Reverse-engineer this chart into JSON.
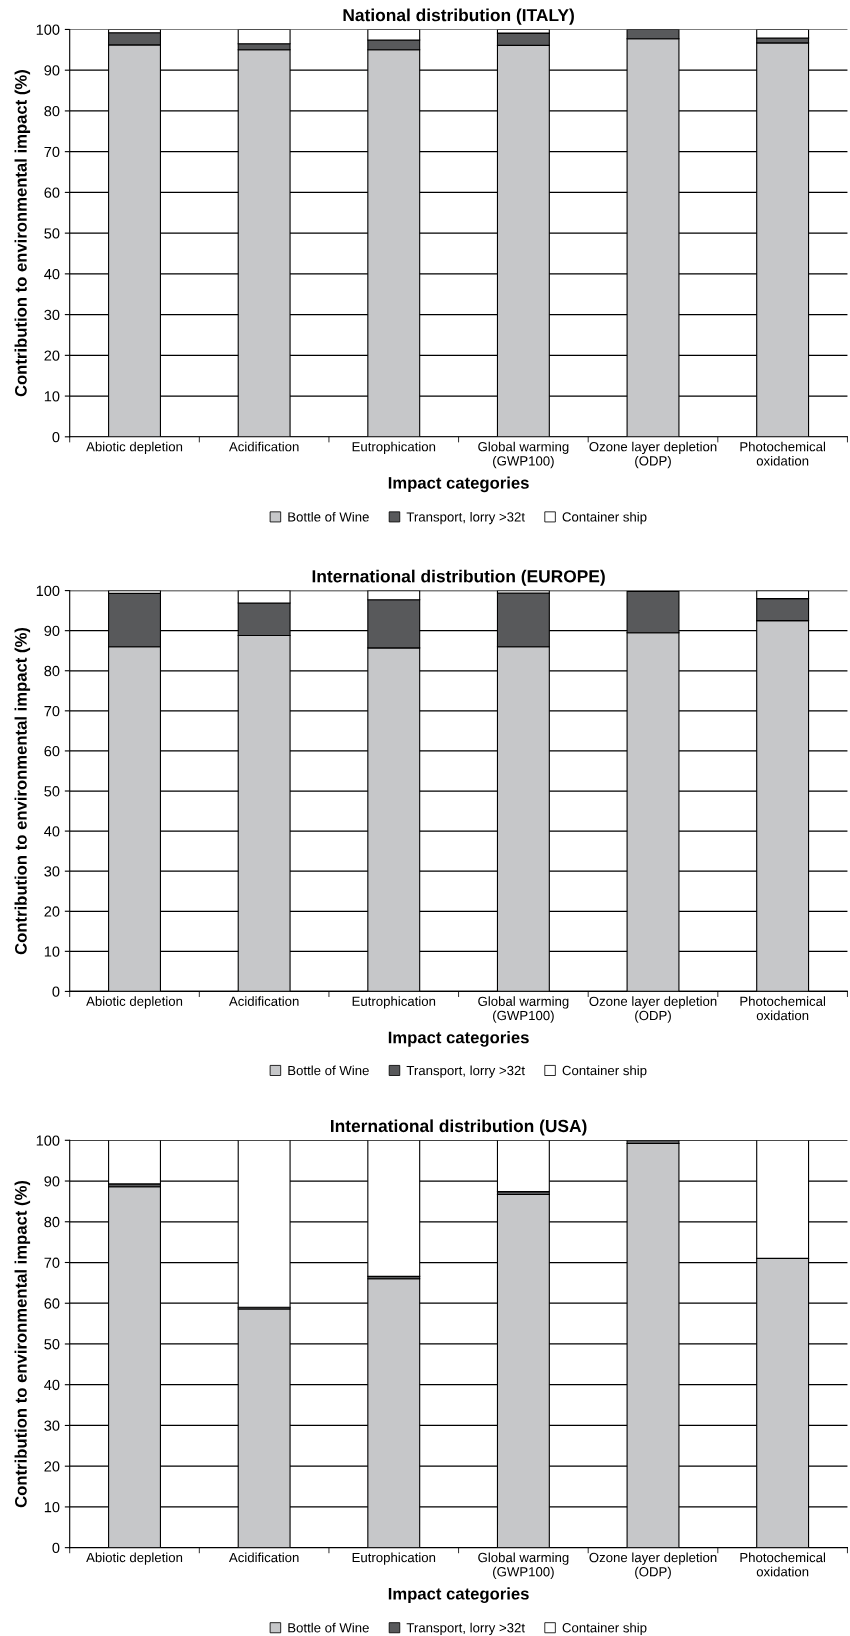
{
  "chart_data": [
    {
      "type": "bar",
      "title": "National distribution (ITALY)",
      "xlabel": "Impact categories",
      "ylabel": "Contribution to environmental impact (%)",
      "stacked": true,
      "legend": "bottom",
      "grid": "y",
      "categories": [
        "Abiotic depletion",
        "Acidification",
        "Eutrophication",
        "Global warming\n(GWP100)",
        "Ozone layer depletion\n(ODP)",
        "Photochemical\noxidation"
      ],
      "ylim": [
        0,
        100
      ],
      "yticks": [
        0,
        10,
        20,
        30,
        40,
        50,
        60,
        70,
        80,
        90,
        100
      ],
      "series": [
        {
          "name": "Bottle of Wine",
          "color": "#c6c7c9",
          "values": [
            96.2,
            95.0,
            95.0,
            96.1,
            97.7,
            96.7
          ]
        },
        {
          "name": "Transport, lorry >32t",
          "color": "#58595b",
          "values": [
            3.0,
            1.5,
            2.4,
            3.0,
            2.3,
            1.2
          ]
        },
        {
          "name": "Container ship",
          "color": "#ffffff",
          "values": [
            0.8,
            3.5,
            2.6,
            0.9,
            null,
            2.1
          ]
        }
      ]
    },
    {
      "type": "bar",
      "title": "International distribution (EUROPE)",
      "xlabel": "Impact categories",
      "ylabel": "Contribution to environmental impact (%)",
      "stacked": true,
      "legend": "bottom",
      "grid": "y",
      "categories": [
        "Abiotic depletion",
        "Acidification",
        "Eutrophication",
        "Global warming\n(GWP100)",
        "Ozone layer depletion\n(ODP)",
        "Photochemical\noxidation"
      ],
      "ylim": [
        0,
        100
      ],
      "yticks": [
        0,
        10,
        20,
        30,
        40,
        50,
        60,
        70,
        80,
        90,
        100
      ],
      "series": [
        {
          "name": "Bottle of Wine",
          "color": "#c6c7c9",
          "values": [
            86.0,
            88.8,
            85.7,
            86.0,
            89.5,
            92.5
          ]
        },
        {
          "name": "Transport, lorry >32t",
          "color": "#58595b",
          "values": [
            13.3,
            8.1,
            12.0,
            13.4,
            10.3,
            5.5
          ]
        },
        {
          "name": "Container ship",
          "color": "#ffffff",
          "values": [
            0.7,
            3.1,
            2.3,
            0.6,
            null,
            2.0
          ]
        }
      ]
    },
    {
      "type": "bar",
      "title": "International distribution (USA)",
      "xlabel": "Impact categories",
      "ylabel": "Contribution to environmental impact (%)",
      "stacked": true,
      "legend": "bottom",
      "grid": "y",
      "categories": [
        "Abiotic depletion",
        "Acidification",
        "Eutrophication",
        "Global warming\n(GWP100)",
        "Ozone layer depletion\n(ODP)",
        "Photochemical\noxidation"
      ],
      "ylim": [
        0,
        100
      ],
      "yticks": [
        0,
        10,
        20,
        30,
        40,
        50,
        60,
        70,
        80,
        90,
        100
      ],
      "series": [
        {
          "name": "Bottle of Wine",
          "color": "#c6c7c9",
          "values": [
            88.6,
            58.6,
            66.0,
            86.7,
            99.2,
            71.0
          ]
        },
        {
          "name": "Transport, lorry >32t",
          "color": "#58595b",
          "values": [
            0.7,
            0.4,
            0.6,
            0.7,
            0.8,
            null
          ]
        },
        {
          "name": "Container ship",
          "color": "#ffffff",
          "values": [
            10.7,
            41.0,
            33.4,
            12.6,
            null,
            29.0
          ]
        }
      ]
    }
  ]
}
